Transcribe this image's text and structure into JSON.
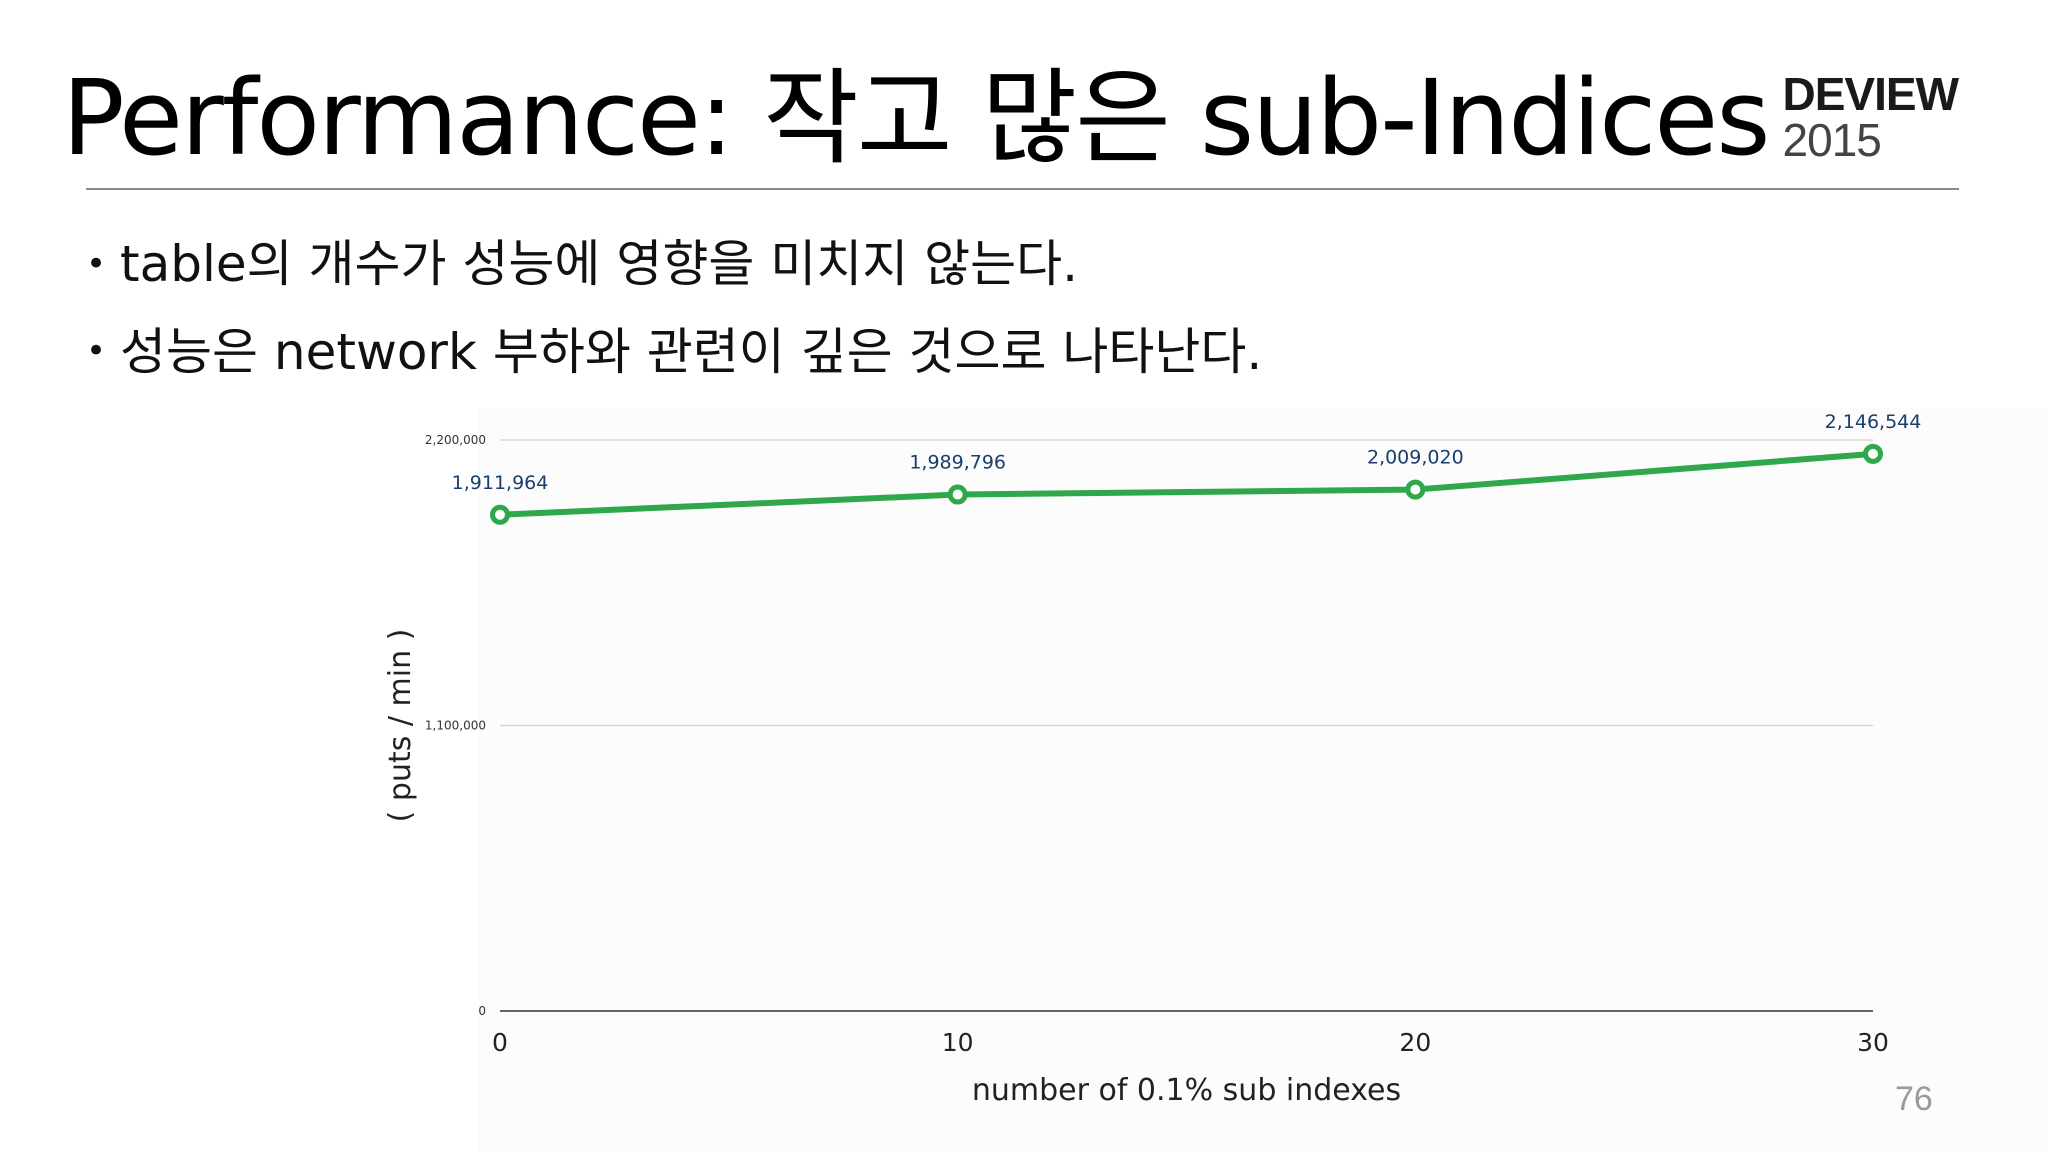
{
  "slide": {
    "title": "Performance: 작고 많은 sub-Indices",
    "logo_word": "DEVIEW",
    "logo_year": "2015",
    "bullets": [
      "table의 개수가 성능에 영향을 미치지 않는다.",
      "성능은 network 부하와 관련이 깊은 것으로 나타난다."
    ],
    "bullet_glyph": "•",
    "page_number": "76"
  },
  "chart_data": {
    "type": "line",
    "x": [
      0,
      10,
      20,
      30
    ],
    "x_tick_labels": [
      "0",
      "10",
      "20",
      "30"
    ],
    "y_tick_labels": [
      "0",
      "1,100,000",
      "2,200,000"
    ],
    "y_ticks": [
      0,
      1100000,
      2200000
    ],
    "series": [
      {
        "values": [
          1911964,
          1989796,
          2009020,
          2146544
        ],
        "data_labels": [
          "1,911,964",
          "1,989,796",
          "2,009,020",
          "2,146,544"
        ],
        "color": "#2ea84a"
      }
    ],
    "xlabel": "number of 0.1% sub indexes",
    "ylabel": "( puts / min )",
    "xlim": [
      0,
      30
    ],
    "ylim": [
      0,
      2200000
    ],
    "grid": true,
    "label_color": "#1a3d6e"
  }
}
